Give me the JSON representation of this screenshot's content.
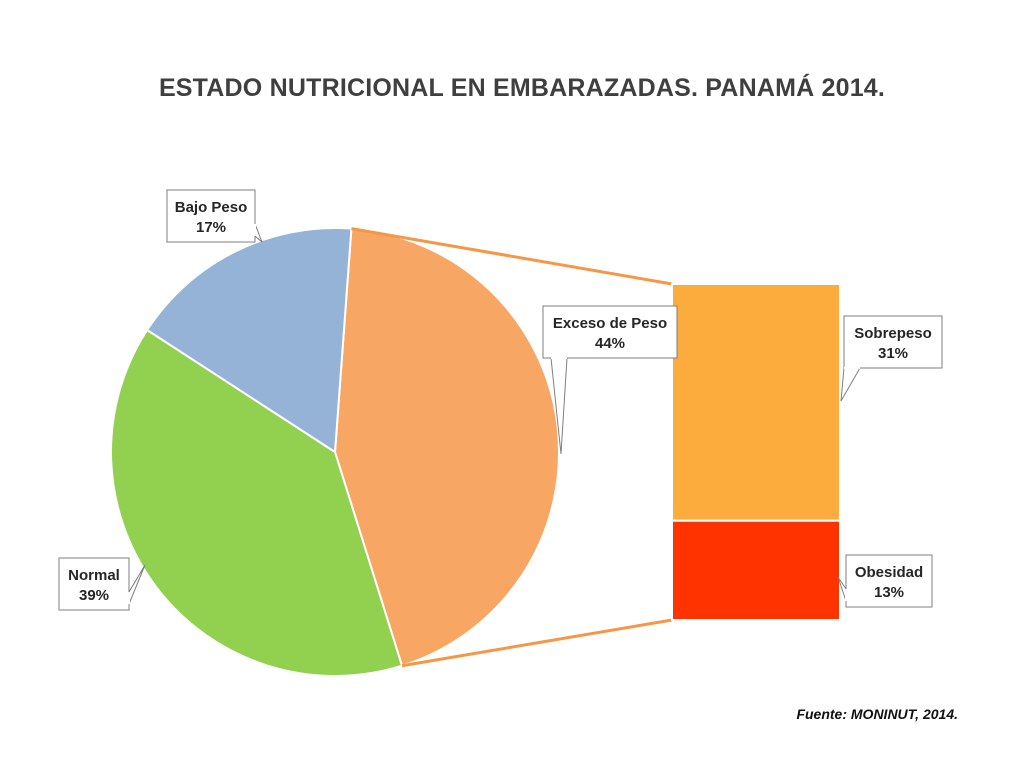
{
  "chart_data": {
    "type": "bar-of-pie",
    "title": "ESTADO NUTRICIONAL EN EMBARAZADAS. PANAMÁ 2014.",
    "pie": [
      {
        "label": "Bajo Peso",
        "value": 17,
        "display": "17%",
        "color": "#95B3D7"
      },
      {
        "label": "Exceso de Peso",
        "value": 44,
        "display": "44%",
        "color": "#F7A763"
      },
      {
        "label": "Normal",
        "value": 39,
        "display": "39%",
        "color": "#92D050"
      }
    ],
    "bar": [
      {
        "label": "Sobrepeso",
        "value": 31,
        "display": "31%",
        "color": "#FBAC3C"
      },
      {
        "label": "Obesidad",
        "value": 13,
        "display": "13%",
        "color": "#FF3300"
      }
    ],
    "connector_color": "#F79646"
  },
  "source": "Fuente: MONINUT, 2014."
}
